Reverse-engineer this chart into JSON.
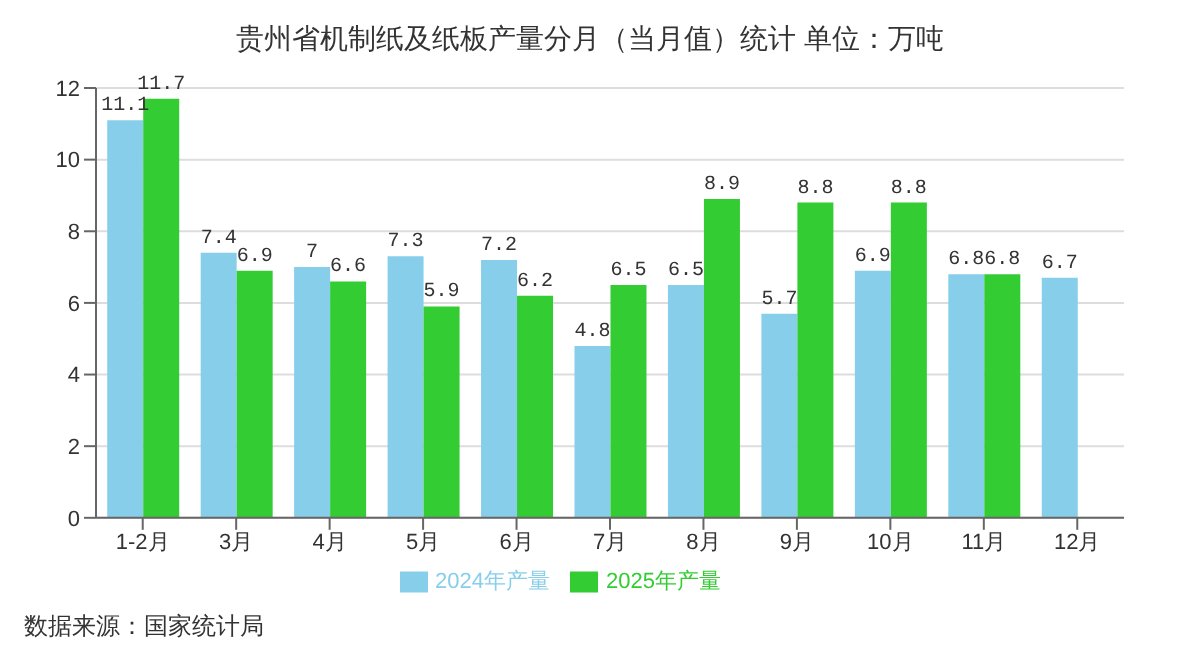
{
  "chart_data": {
    "type": "bar",
    "title": "贵州省机制纸及纸板产量分月（当月值）统计  单位：万吨",
    "categories": [
      "1-2月",
      "3月",
      "4月",
      "5月",
      "6月",
      "7月",
      "8月",
      "9月",
      "10月",
      "11月",
      "12月"
    ],
    "series": [
      {
        "name": "2024年产量",
        "color": "#87ceeb",
        "values": [
          11.1,
          7.4,
          7,
          7.3,
          7.2,
          4.8,
          6.5,
          5.7,
          6.9,
          6.8,
          6.7
        ]
      },
      {
        "name": "2025年产量",
        "color": "#33cc33",
        "values": [
          11.7,
          6.9,
          6.6,
          5.9,
          6.2,
          6.5,
          8.9,
          8.8,
          8.8,
          6.8,
          null
        ]
      }
    ],
    "ylim": [
      0,
      12
    ],
    "yticks": [
      0,
      2,
      4,
      6,
      8,
      10,
      12
    ],
    "grid": "y",
    "legend": "bottom",
    "data_labels": true,
    "annotations": [
      "数据来源：国家统计局"
    ]
  }
}
